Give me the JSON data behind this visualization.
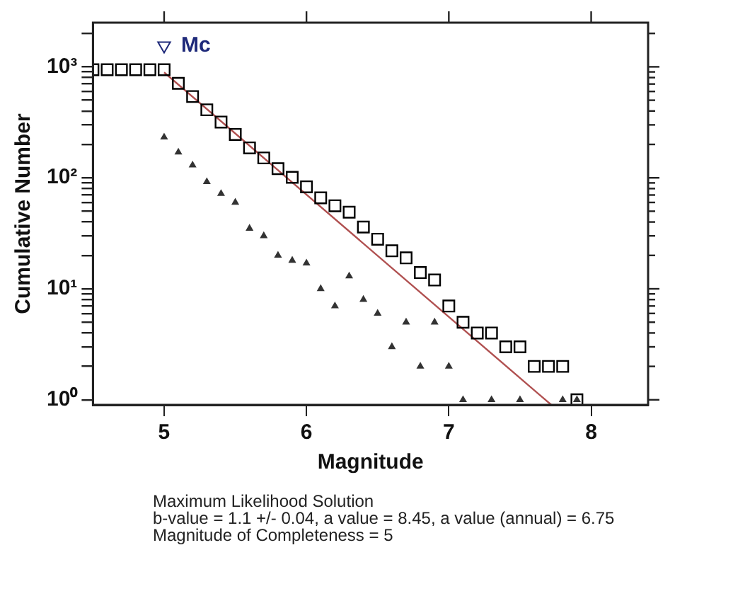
{
  "chart_data": {
    "type": "scatter",
    "xlabel": "Magnitude",
    "ylabel": "Cumulative Number",
    "log": true,
    "grid": false,
    "legend": false,
    "xlim": [
      4.5,
      8.4
    ],
    "xticks": [
      5,
      6,
      7,
      8
    ],
    "ylim": [
      0.9,
      2500
    ],
    "yticks": [
      {
        "value": 1,
        "label": "10⁰"
      },
      {
        "value": 2,
        "label": null
      },
      {
        "value": 3,
        "label": null
      },
      {
        "value": 4,
        "label": null
      },
      {
        "value": 5,
        "label": null
      },
      {
        "value": 6,
        "label": null
      },
      {
        "value": 7,
        "label": null
      },
      {
        "value": 8,
        "label": null
      },
      {
        "value": 9,
        "label": null
      },
      {
        "value": 10,
        "label": "10¹"
      },
      {
        "value": 20,
        "label": null
      },
      {
        "value": 30,
        "label": null
      },
      {
        "value": 40,
        "label": null
      },
      {
        "value": 50,
        "label": null
      },
      {
        "value": 60,
        "label": null
      },
      {
        "value": 70,
        "label": null
      },
      {
        "value": 80,
        "label": null
      },
      {
        "value": 90,
        "label": null
      },
      {
        "value": 100,
        "label": "10²"
      },
      {
        "value": 200,
        "label": null
      },
      {
        "value": 300,
        "label": null
      },
      {
        "value": 400,
        "label": null
      },
      {
        "value": 500,
        "label": null
      },
      {
        "value": 600,
        "label": null
      },
      {
        "value": 700,
        "label": null
      },
      {
        "value": 800,
        "label": null
      },
      {
        "value": 900,
        "label": null
      },
      {
        "value": 1000,
        "label": "10³"
      },
      {
        "value": 2000,
        "label": null
      }
    ],
    "series": [
      {
        "marker": "square",
        "color": "#000000",
        "x": [
          4.5,
          4.6,
          4.7,
          4.8,
          4.9,
          5.0,
          5.1,
          5.2,
          5.3,
          5.4,
          5.5,
          5.6,
          5.7,
          5.8,
          5.9,
          6.0,
          6.1,
          6.2,
          6.3,
          6.4,
          6.5,
          6.6,
          6.7,
          6.8,
          6.9,
          7.0,
          7.1,
          7.2,
          7.3,
          7.4,
          7.5,
          7.6,
          7.7,
          7.8,
          7.9
        ],
        "values": [
          942,
          942,
          942,
          942,
          942,
          942,
          710,
          540,
          410,
          318,
          246,
          186,
          151,
          121,
          101,
          83,
          66,
          56,
          49,
          36,
          28,
          22,
          19,
          14,
          12,
          7,
          5,
          4,
          4,
          3,
          3,
          2,
          2,
          2,
          1
        ]
      },
      {
        "marker": "triangle",
        "color": "#333333",
        "x": [
          5.0,
          5.1,
          5.2,
          5.3,
          5.4,
          5.5,
          5.6,
          5.7,
          5.8,
          5.9,
          6.0,
          6.1,
          6.2,
          6.3,
          6.4,
          6.5,
          6.6,
          6.7,
          6.8,
          6.9,
          7.0,
          7.1,
          7.2,
          7.3,
          7.4,
          7.5,
          7.6,
          7.7,
          7.8,
          7.9
        ],
        "values": [
          232,
          170,
          130,
          92,
          72,
          60,
          35,
          30,
          20,
          18,
          17,
          10,
          7,
          13,
          8,
          6,
          3,
          5,
          2,
          5,
          2,
          1,
          null,
          1,
          null,
          1,
          null,
          null,
          1,
          1
        ]
      },
      {
        "type": "line",
        "marker": "none",
        "color": "#b05050",
        "x": [
          5.0,
          7.72
        ],
        "values": [
          891,
          0.9
        ]
      },
      {
        "name": "Mc",
        "marker": "triangle",
        "color": "#1f2a7a",
        "x": [
          5.0
        ],
        "values": [
          1550
        ]
      }
    ],
    "annotations": [
      "Maximum Likelihood Solution",
      "b-value = 1.1 +/- 0.04,  a value = 8.45,  a value (annual) = 6.75",
      "Magnitude of Completeness = 5"
    ]
  }
}
